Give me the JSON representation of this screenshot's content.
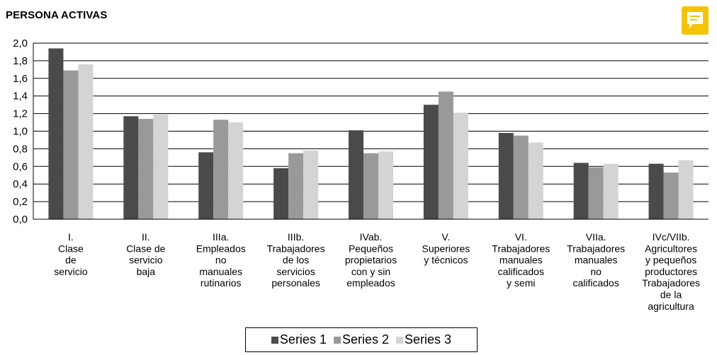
{
  "title": "PERSONA ACTIVAS",
  "comment_icon": "comment-icon",
  "chart_data": {
    "type": "bar",
    "categories": [
      [
        "I.",
        "Clase",
        "de",
        "servicio"
      ],
      [
        "II.",
        "Clase de",
        "servicio",
        "baja"
      ],
      [
        "IIIa.",
        "Empleados",
        "no",
        "manuales",
        "rutinarios"
      ],
      [
        "IIIb.",
        "Trabajadores",
        "de los",
        "servicios",
        "personales"
      ],
      [
        "IVab.",
        "Pequeños",
        "propietarios",
        "con y sin",
        "empleados"
      ],
      [
        "V.",
        "Superiores",
        "y técnicos"
      ],
      [
        "VI.",
        "Trabajadores",
        "manuales",
        "calificados",
        "y semi"
      ],
      [
        "VIIa.",
        "Trabajadores",
        "manuales",
        "no",
        "calificados"
      ],
      [
        "IVc/VIIb.",
        "Agricultores",
        "y pequeños",
        "productores",
        "Trabajadores",
        "de la",
        "agricultura"
      ]
    ],
    "series": [
      {
        "name": "Series 1",
        "color": "#4a4a4a",
        "values": [
          1.94,
          1.17,
          0.76,
          0.58,
          1.01,
          1.3,
          0.98,
          0.64,
          0.63
        ]
      },
      {
        "name": "Series 2",
        "color": "#999999",
        "values": [
          1.69,
          1.14,
          1.13,
          0.75,
          0.75,
          1.45,
          0.95,
          0.59,
          0.53
        ]
      },
      {
        "name": "Series 3",
        "color": "#d4d4d4",
        "values": [
          1.76,
          1.19,
          1.1,
          0.78,
          0.77,
          1.21,
          0.87,
          0.63,
          0.67
        ]
      }
    ],
    "yticks": [
      "0,0",
      "0,2",
      "0,4",
      "0,6",
      "0,8",
      "1,0",
      "1,2",
      "1,4",
      "1,6",
      "1,8",
      "2,0"
    ],
    "ylim": [
      0,
      2.0
    ],
    "grid": true,
    "legend_position": "bottom"
  }
}
